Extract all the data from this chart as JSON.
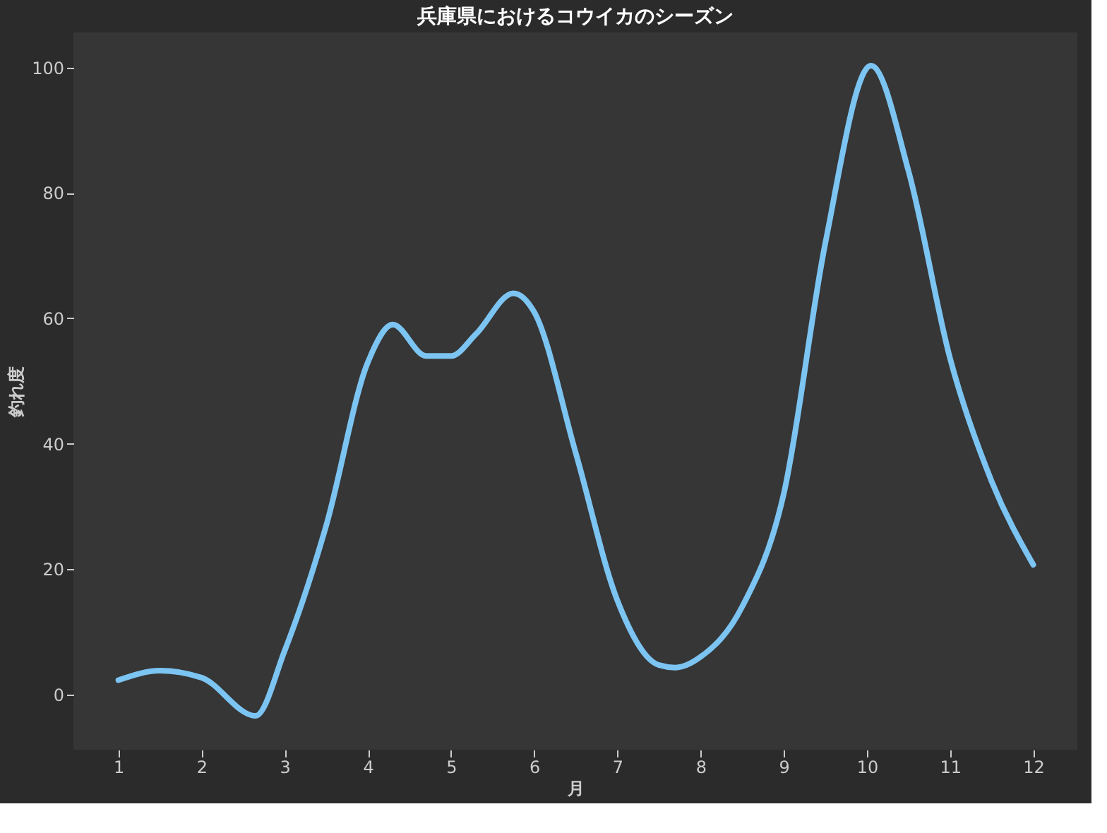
{
  "chart_data": {
    "type": "line",
    "title": "兵庫県におけるコウイカのシーズン",
    "xlabel": "月",
    "ylabel": "釣れ度",
    "xlim": [
      0.46,
      12.53
    ],
    "xticks": [
      1,
      2,
      3,
      4,
      5,
      6,
      7,
      8,
      9,
      10,
      11,
      12
    ],
    "ylim": [
      -8.8,
      105.6
    ],
    "yticks": [
      0,
      20,
      40,
      60,
      80,
      100
    ],
    "grid": false,
    "legend": false,
    "marker": "none",
    "line_style": "solid",
    "series": [
      {
        "color": "#7cc4f2",
        "x": [
          1,
          1.5,
          2,
          2.65,
          3,
          3.5,
          4,
          4.3,
          4.7,
          5,
          5.3,
          5.75,
          6,
          6.5,
          7,
          7.5,
          7.7,
          8,
          8.5,
          9,
          9.5,
          10.05,
          10.5,
          11,
          11.5,
          12
        ],
        "values": [
          2.3,
          3.8,
          2.7,
          -3.4,
          7,
          27,
          53,
          59,
          54,
          54,
          57.5,
          64,
          61,
          38.5,
          15,
          4.7,
          4.3,
          6,
          14,
          32,
          72,
          100.3,
          83.5,
          53.6,
          34,
          20.7
        ]
      }
    ]
  }
}
